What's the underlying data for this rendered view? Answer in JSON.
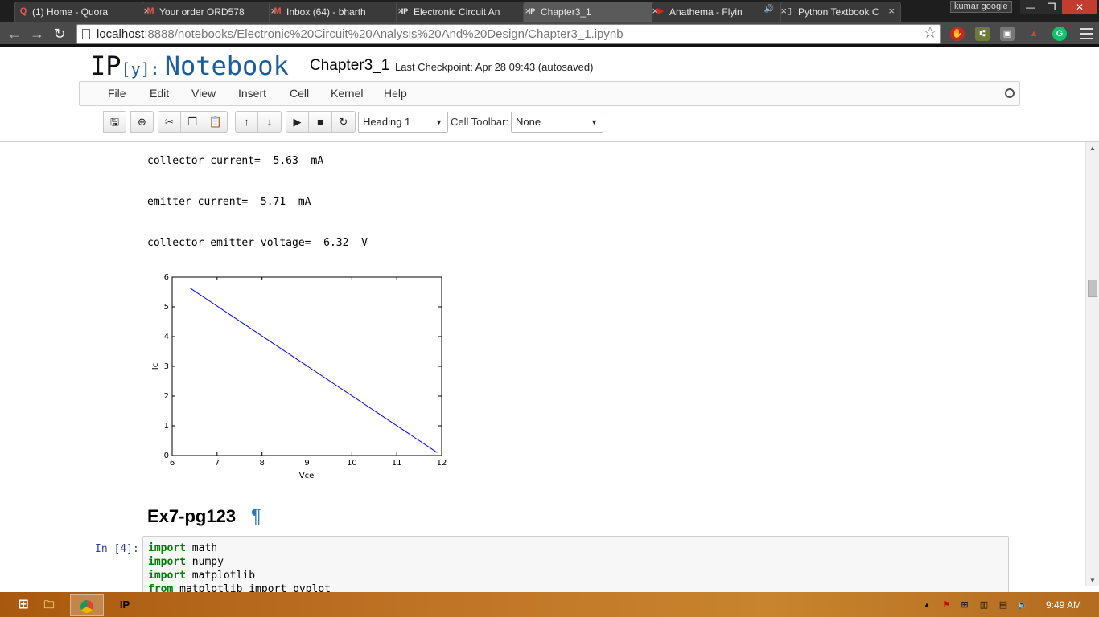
{
  "browser": {
    "tabs": [
      {
        "label": "(1) Home - Quora",
        "favicon": "Q",
        "favicon_color": "#b92b27"
      },
      {
        "label": "Your order ORD578",
        "favicon": "M",
        "favicon_color": "#d44638"
      },
      {
        "label": "Inbox (64) - bharth",
        "favicon": "M",
        "favicon_color": "#d44638"
      },
      {
        "label": "Electronic Circuit An",
        "favicon": "IP",
        "favicon_color": "#ffffff"
      },
      {
        "label": "Chapter3_1",
        "favicon": "IP",
        "favicon_color": "#ffffff"
      },
      {
        "label": "Anathema - Flyin",
        "favicon": "▶",
        "favicon_color": "#e62117"
      },
      {
        "label": "Python Textbook C",
        "favicon": "",
        "favicon_color": "#cccccc"
      }
    ],
    "tab_close": "×",
    "profile_name": "kumar google",
    "window_buttons": {
      "minimize": "—",
      "restore": "❐",
      "close": "✕"
    },
    "url_host": "localhost",
    "url_rest": ":8888/notebooks/Electronic%20Circuit%20Analysis%20And%20Design/Chapter3_1.ipynb"
  },
  "notebook": {
    "logo_ip": "IP",
    "logo_y": "[y]:",
    "logo_word": "Notebook",
    "title": "Chapter3_1",
    "checkpoint": "Last Checkpoint: Apr 28 09:43 (autosaved)",
    "menus": [
      "File",
      "Edit",
      "View",
      "Insert",
      "Cell",
      "Kernel",
      "Help"
    ],
    "cell_type": "Heading 1",
    "cell_toolbar_label": "Cell Toolbar:",
    "cell_toolbar_value": "None"
  },
  "output": {
    "lines": [
      "collector current=  5.63  mA",
      "emitter current=  5.71  mA",
      "collector emitter voltage=  6.32  V"
    ]
  },
  "chart_data": {
    "type": "line",
    "title": "",
    "xlabel": "Vce",
    "ylabel": "Ic",
    "xlim": [
      6,
      12
    ],
    "ylim": [
      0,
      6
    ],
    "xticks": [
      6,
      7,
      8,
      9,
      10,
      11,
      12
    ],
    "yticks": [
      0,
      1,
      2,
      3,
      4,
      5,
      6
    ],
    "series": [
      {
        "x": [
          6.4,
          11.9
        ],
        "y": [
          5.63,
          0.1
        ],
        "color": "#0000ff"
      }
    ],
    "grid": false
  },
  "heading": {
    "text": "Ex7-pg123",
    "anchor": "¶"
  },
  "code_cell": {
    "prompt": "In [4]:",
    "lines": [
      {
        "kw": "import",
        "rest": " math"
      },
      {
        "kw": "import",
        "rest": " numpy"
      },
      {
        "kw": "import",
        "rest": " matplotlib"
      },
      {
        "kw": "from",
        "rest": " matplotlib import pyplot"
      }
    ]
  },
  "taskbar": {
    "ipython_label": "IP",
    "clock": "9:49 AM"
  }
}
